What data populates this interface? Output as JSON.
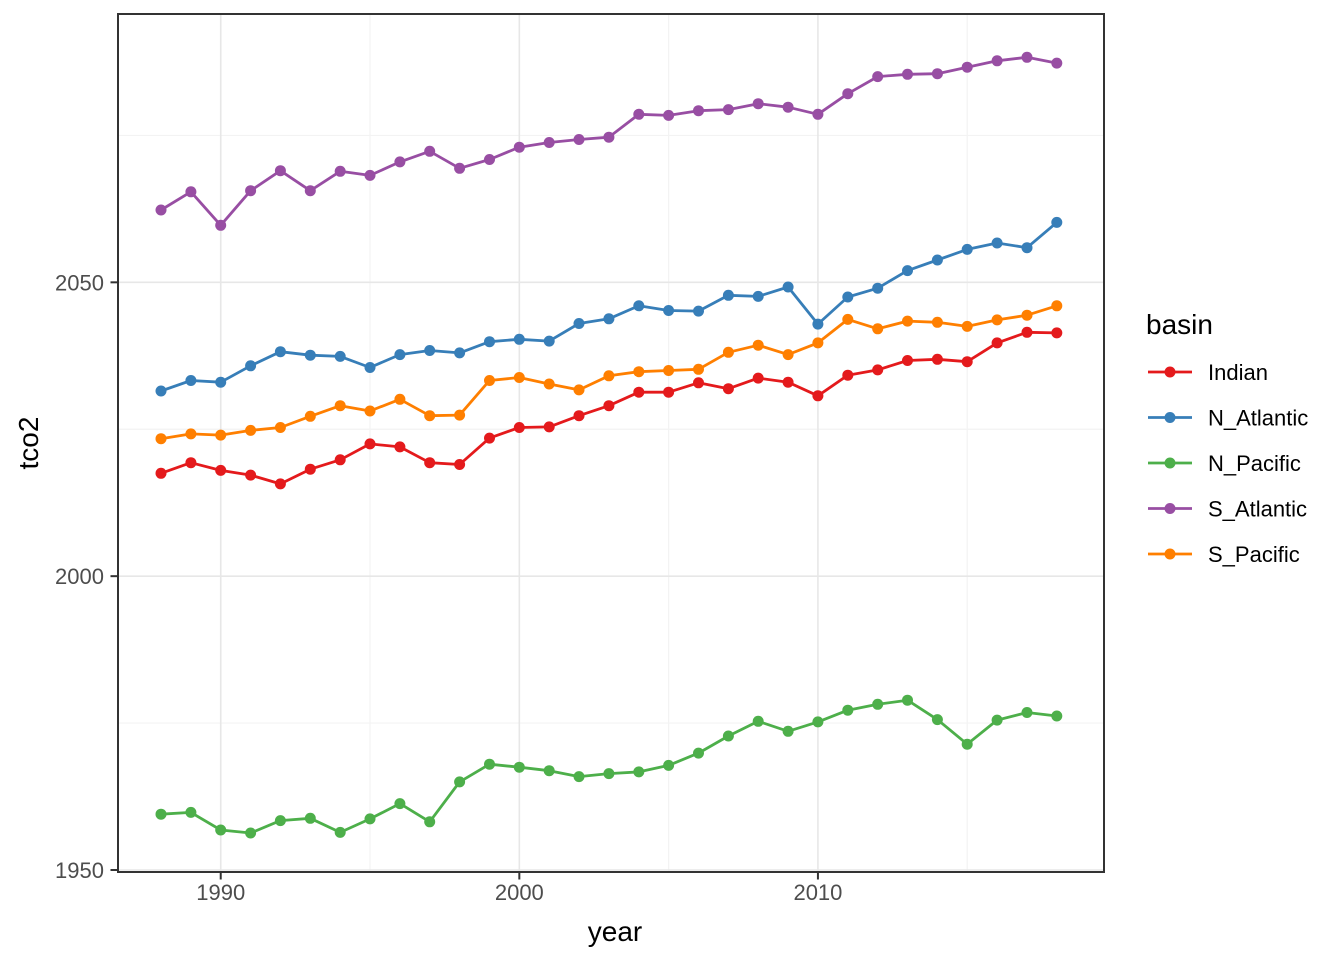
{
  "chart_data": {
    "type": "line",
    "title": "",
    "xlabel": "year",
    "ylabel": "tco2",
    "legend_title": "basin",
    "legend_position": "right",
    "grid": true,
    "marker": "circle",
    "x": [
      1988,
      1989,
      1990,
      1991,
      1992,
      1993,
      1994,
      1995,
      1996,
      1997,
      1998,
      1999,
      2000,
      2001,
      2002,
      2003,
      2004,
      2005,
      2006,
      2007,
      2008,
      2009,
      2010,
      2011,
      2012,
      2013,
      2014,
      2015,
      2016,
      2017,
      2018
    ],
    "series": [
      {
        "name": "Indian",
        "color": "#E41A1C",
        "values": [
          2017.5,
          2019.3,
          2018.0,
          2017.2,
          2015.7,
          2018.2,
          2019.8,
          2022.5,
          2022.0,
          2019.3,
          2019.0,
          2023.5,
          2025.3,
          2025.4,
          2027.3,
          2029.0,
          2031.3,
          2031.3,
          2032.9,
          2031.9,
          2033.7,
          2033.0,
          2030.7,
          2034.2,
          2035.1,
          2036.7,
          2036.9,
          2036.5,
          2039.7,
          2041.5,
          2041.4
        ]
      },
      {
        "name": "N_Atlantic",
        "color": "#377EB8",
        "values": [
          2031.5,
          2033.3,
          2033.0,
          2035.8,
          2038.2,
          2037.6,
          2037.4,
          2035.5,
          2037.7,
          2038.4,
          2038.0,
          2039.9,
          2040.3,
          2040.0,
          2043.0,
          2043.8,
          2046.0,
          2045.2,
          2045.1,
          2047.8,
          2047.6,
          2049.2,
          2042.9,
          2047.5,
          2049.0,
          2052.0,
          2053.8,
          2055.6,
          2056.7,
          2055.9,
          2060.2
        ]
      },
      {
        "name": "N_Pacific",
        "color": "#4DAF4A",
        "values": [
          1959.5,
          1959.8,
          1956.8,
          1956.3,
          1958.4,
          1958.8,
          1956.4,
          1958.7,
          1961.3,
          1958.2,
          1965.0,
          1968.0,
          1967.5,
          1966.9,
          1965.9,
          1966.4,
          1966.7,
          1967.8,
          1969.9,
          1972.8,
          1975.3,
          1973.6,
          1975.2,
          1977.2,
          1978.2,
          1978.9,
          1975.6,
          1971.4,
          1975.5,
          1976.8,
          1976.2
        ]
      },
      {
        "name": "S_Atlantic",
        "color": "#984EA3",
        "values": [
          2062.3,
          2065.4,
          2059.7,
          2065.6,
          2069.0,
          2065.6,
          2068.9,
          2068.2,
          2070.5,
          2072.3,
          2069.4,
          2070.9,
          2073.0,
          2073.8,
          2074.3,
          2074.7,
          2078.6,
          2078.4,
          2079.2,
          2079.4,
          2080.4,
          2079.8,
          2078.6,
          2082.1,
          2085.0,
          2085.4,
          2085.5,
          2086.6,
          2087.7,
          2088.3,
          2087.3
        ]
      },
      {
        "name": "S_Pacific",
        "color": "#FF7F00",
        "values": [
          2023.4,
          2024.2,
          2024.0,
          2024.8,
          2025.3,
          2027.2,
          2029.0,
          2028.1,
          2030.1,
          2027.3,
          2027.4,
          2033.3,
          2033.8,
          2032.7,
          2031.7,
          2034.1,
          2034.8,
          2035.0,
          2035.2,
          2038.1,
          2039.3,
          2037.7,
          2039.7,
          2043.7,
          2042.1,
          2043.4,
          2043.2,
          2042.5,
          2043.6,
          2044.4,
          2046.0
        ]
      }
    ],
    "xlim": [
      1986.56,
      2019.58
    ],
    "ylim": [
      1949.66,
      2095.66
    ],
    "x_ticks": [
      1990,
      2000,
      2010
    ],
    "x_minor_ticks": [
      1995,
      2005,
      2015
    ],
    "y_ticks": [
      1950,
      2000,
      2050
    ],
    "y_minor_ticks": [
      1975,
      2025,
      2075
    ]
  },
  "style": {
    "background": "#ffffff",
    "panel_background": "#ffffff",
    "panel_border_color": "#333333",
    "grid_major_color": "#e7e7e7",
    "grid_minor_color": "#f3f3f3",
    "axis_text_color": "#4d4d4d",
    "axis_title_color": "#000000",
    "tick_mark_color": "#333333",
    "legend_text_color": "#000000"
  }
}
